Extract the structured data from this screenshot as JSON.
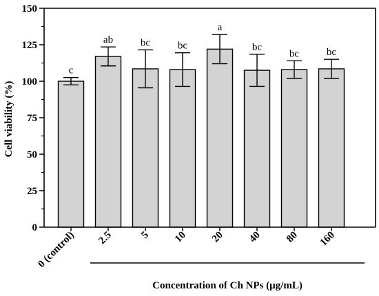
{
  "chart_data": {
    "type": "bar",
    "title": "",
    "xlabel": "Concentration of Ch NPs (μg/mL)",
    "ylabel": "Cell viability (%)",
    "ylim": [
      0,
      150
    ],
    "yticks": [
      "0",
      "25",
      "50",
      "75",
      "100",
      "125",
      "150"
    ],
    "categories": [
      "0 (control)",
      "2.5",
      "5",
      "10",
      "20",
      "40",
      "80",
      "160"
    ],
    "values": [
      100,
      117,
      108.5,
      108,
      122,
      107.5,
      108,
      108.5
    ],
    "errors": [
      2.5,
      6.5,
      13,
      11.5,
      10,
      11,
      6,
      6.5
    ],
    "significance": [
      "c",
      "ab",
      "bc",
      "bc",
      "a",
      "bc",
      "bc",
      "bc"
    ],
    "bar_color": "#d3d3d3",
    "edge_color": "#000000",
    "grid": false
  }
}
